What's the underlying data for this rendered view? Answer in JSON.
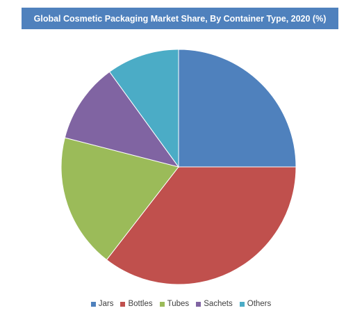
{
  "chart_data": {
    "type": "pie",
    "title": "Global Cosmetic Packaging Market Share, By Container Type, 2020 (%)",
    "categories": [
      "Jars",
      "Bottles",
      "Tubes",
      "Sachets",
      "Others"
    ],
    "values": [
      25,
      35.5,
      18.5,
      11,
      10
    ],
    "colors": [
      "#4f81bd",
      "#c0504d",
      "#9bbb59",
      "#8064a2",
      "#4bacc6"
    ],
    "start_angle": "12 o'clock, clockwise",
    "legend_position": "bottom"
  }
}
